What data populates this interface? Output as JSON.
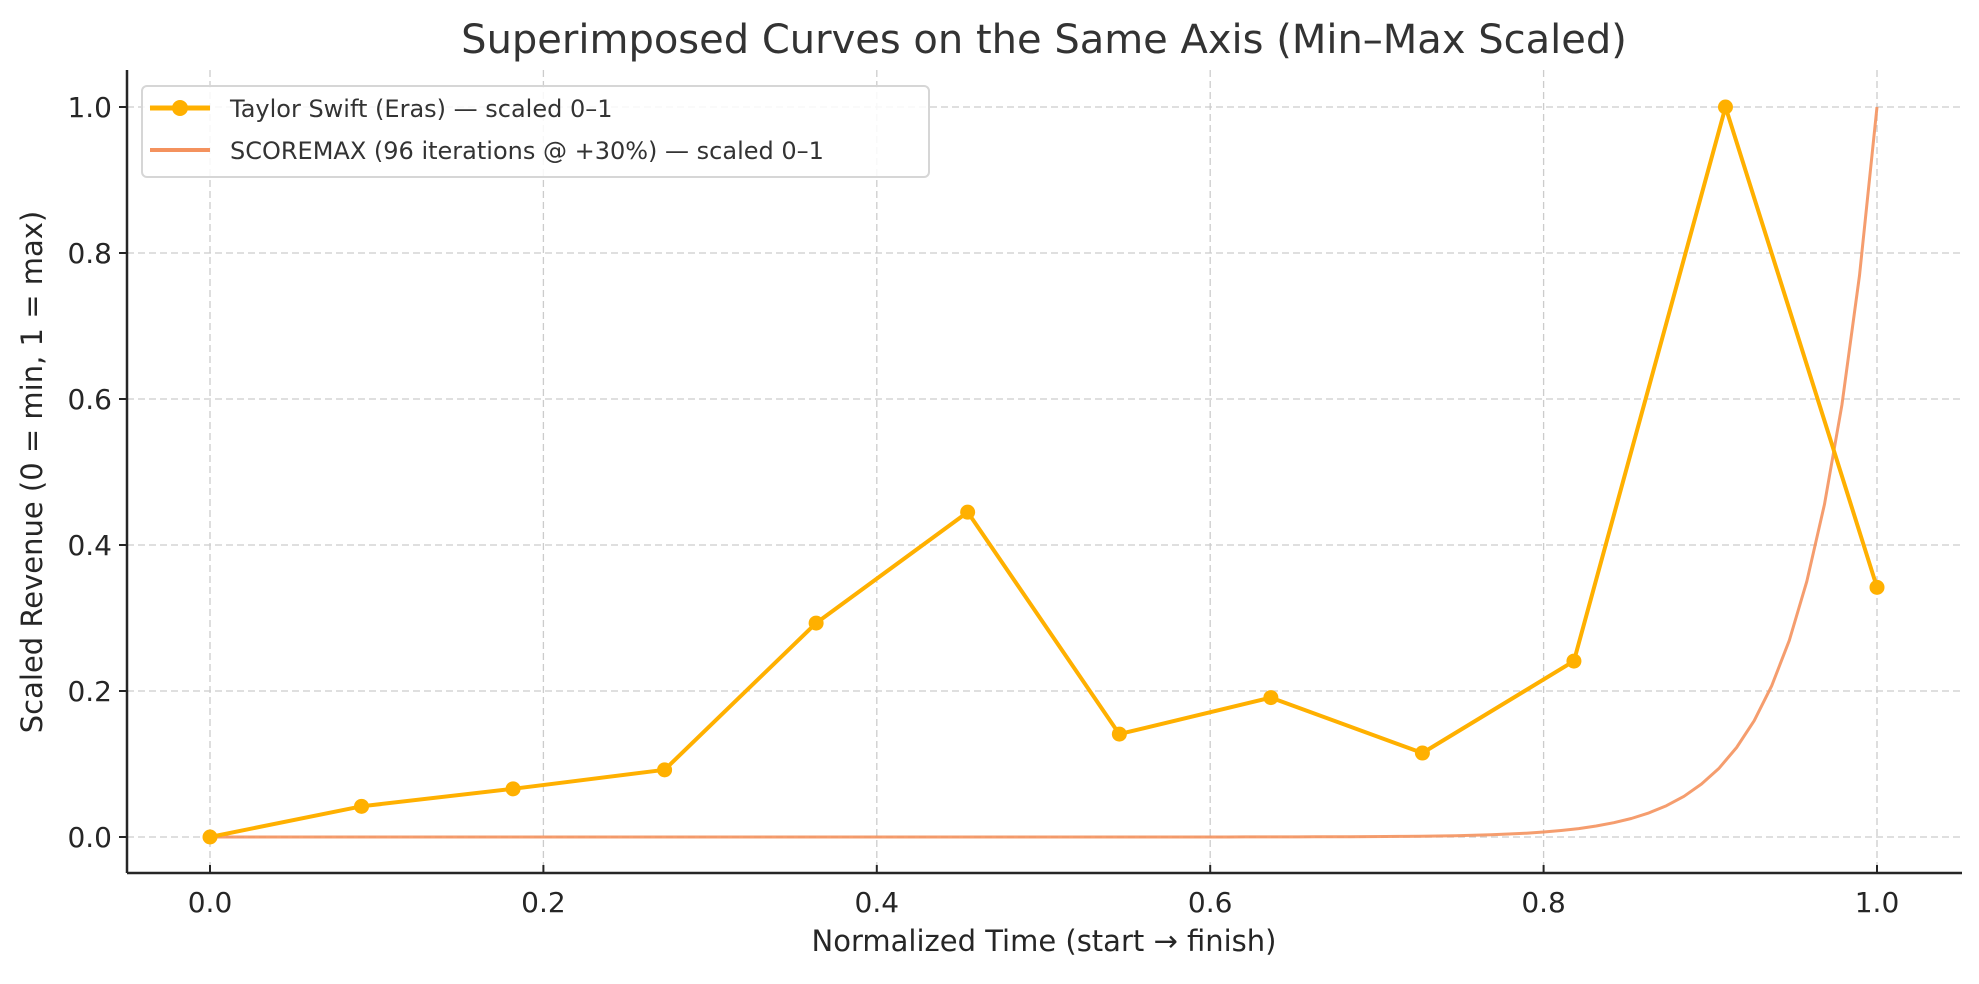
{
  "chart_data": {
    "type": "line",
    "title": "Superimposed Curves on the Same Axis (Min–Max Scaled)",
    "xlabel": "Normalized Time (start → finish)",
    "ylabel": "Scaled Revenue (0 = min, 1 = max)",
    "xlim": [
      -0.05,
      1.05
    ],
    "ylim": [
      -0.05,
      1.05
    ],
    "xticks": [
      0.0,
      0.2,
      0.4,
      0.6,
      0.8,
      1.0
    ],
    "xtick_labels": [
      "0.0",
      "0.2",
      "0.4",
      "0.6",
      "0.8",
      "1.0"
    ],
    "yticks": [
      0.0,
      0.2,
      0.4,
      0.6,
      0.8,
      1.0
    ],
    "ytick_labels": [
      "0.0",
      "0.2",
      "0.4",
      "0.6",
      "0.8",
      "1.0"
    ],
    "grid": true,
    "legend_position": "upper left",
    "series": [
      {
        "name": "Taylor Swift (Eras) — scaled 0–1",
        "color": "#FFB000",
        "marker": "circle",
        "line_width": 4,
        "x": [
          0.0,
          0.0909,
          0.1818,
          0.2727,
          0.3636,
          0.4545,
          0.5455,
          0.6364,
          0.7273,
          0.8182,
          0.9091,
          1.0
        ],
        "values": [
          0.0,
          0.042,
          0.066,
          0.092,
          0.293,
          0.445,
          0.141,
          0.191,
          0.115,
          0.241,
          1.0,
          0.342
        ]
      },
      {
        "name": "SCOREMAX (96 iterations @ +30%) — scaled 0–1",
        "color": "#F4925E",
        "marker": "none",
        "line_width": 3,
        "description": "Exponential growth 1.3^k over 96 iterations, min-max scaled; ~0 until t≈0.8, rising to 1.0 at t=1.0",
        "x": [
          0.0,
          0.5,
          0.7,
          0.75,
          0.8,
          0.84,
          0.87,
          0.9,
          0.92,
          0.94,
          0.95,
          0.96,
          0.97,
          0.98,
          0.99,
          1.0
        ],
        "values": [
          0.0,
          0.0,
          0.001,
          0.002,
          0.007,
          0.019,
          0.04,
          0.08,
          0.131,
          0.214,
          0.287,
          0.373,
          0.466,
          0.61,
          0.778,
          1.0
        ]
      }
    ]
  }
}
